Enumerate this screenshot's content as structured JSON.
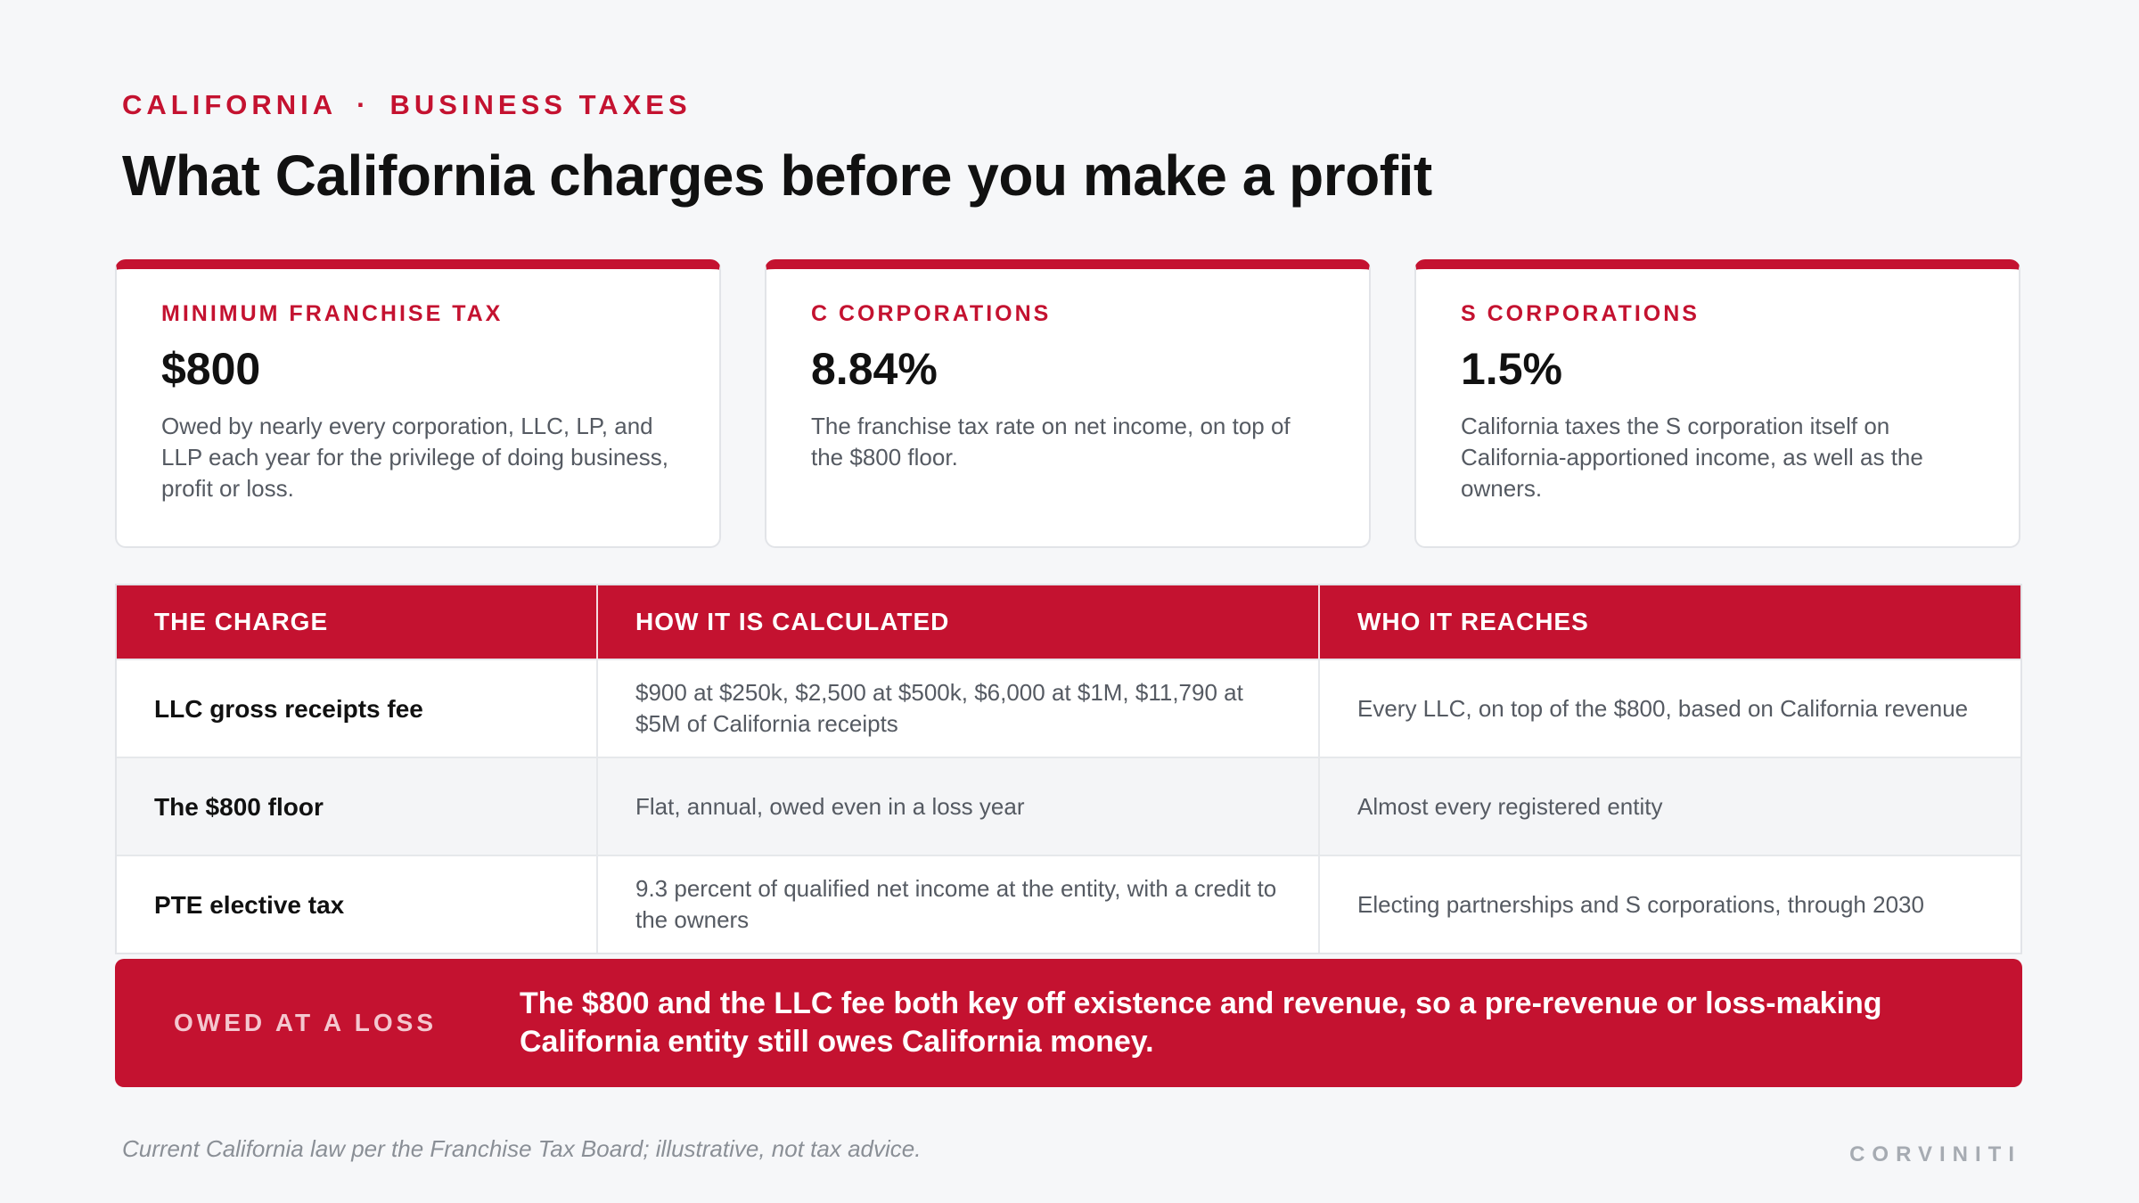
{
  "header": {
    "eyebrow_left": "CALIFORNIA",
    "eyebrow_sep": "·",
    "eyebrow_right": "BUSINESS TAXES",
    "title": "What California charges before you make a profit"
  },
  "cards": [
    {
      "label": "MINIMUM FRANCHISE TAX",
      "value": "$800",
      "desc": "Owed by nearly every corporation, LLC, LP, and LLP each year for the privilege of doing business, profit or loss."
    },
    {
      "label": "C CORPORATIONS",
      "value": "8.84%",
      "desc": "The franchise tax rate on net income, on top of the $800 floor."
    },
    {
      "label": "S CORPORATIONS",
      "value": "1.5%",
      "desc": "California taxes the S corporation itself on California-apportioned income, as well as the owners."
    }
  ],
  "table": {
    "headers": [
      "THE CHARGE",
      "HOW IT IS CALCULATED",
      "WHO IT REACHES"
    ],
    "rows": [
      {
        "charge": "LLC gross receipts fee",
        "calc": "$900 at $250k, $2,500 at $500k, $6,000 at $1M, $11,790 at $5M of California receipts",
        "reach": "Every LLC, on top of the $800, based on California revenue"
      },
      {
        "charge": "The $800 floor",
        "calc": "Flat, annual, owed even in a loss year",
        "reach": "Almost every registered entity"
      },
      {
        "charge": "PTE elective tax",
        "calc": "9.3 percent of qualified net income at the entity, with a credit to the owners",
        "reach": "Electing partnerships and S corporations, through 2030"
      }
    ]
  },
  "banner": {
    "tag": "OWED AT A LOSS",
    "message": "The $800 and the LLC fee both key off existence and revenue, so a pre-revenue or loss-making California entity still owes California money."
  },
  "footer": {
    "note": "Current California law per the Franchise Tax Board; illustrative, not tax advice.",
    "brand": "CORVINITI"
  },
  "colors": {
    "accent": "#c41230",
    "background": "#f6f7f9",
    "text": "#111111",
    "muted": "#555a62"
  }
}
